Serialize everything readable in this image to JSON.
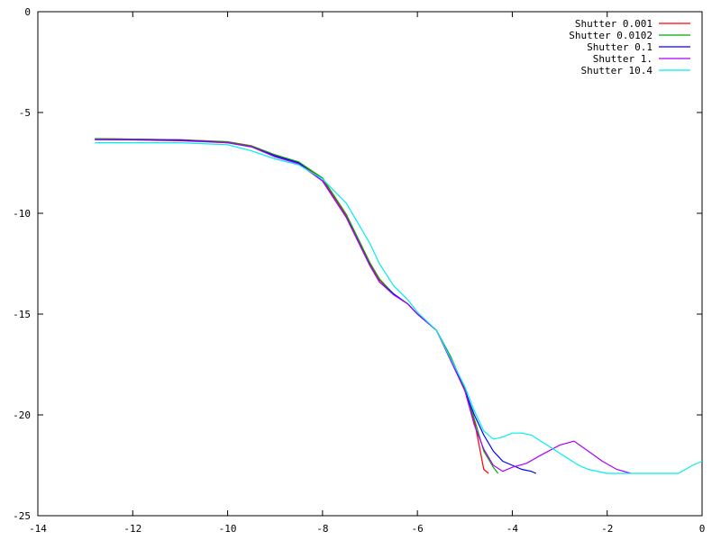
{
  "chart_data": {
    "type": "line",
    "title": "",
    "xlabel": "",
    "ylabel": "",
    "xlim": [
      -14,
      0
    ],
    "ylim": [
      -25,
      0
    ],
    "grid": false,
    "legend_position": "top-right",
    "x_ticks": [
      {
        "value": -14,
        "label": "-14"
      },
      {
        "value": -12,
        "label": "-12"
      },
      {
        "value": -10,
        "label": "-10"
      },
      {
        "value": -8,
        "label": "-8"
      },
      {
        "value": -6,
        "label": "-6"
      },
      {
        "value": -4,
        "label": "-4"
      },
      {
        "value": -2,
        "label": "-2"
      },
      {
        "value": 0,
        "label": "0"
      }
    ],
    "y_ticks": [
      {
        "value": 0,
        "label": "0"
      },
      {
        "value": -5,
        "label": "-5"
      },
      {
        "value": -10,
        "label": "-10"
      },
      {
        "value": -15,
        "label": "-15"
      },
      {
        "value": -20,
        "label": "-20"
      },
      {
        "value": -25,
        "label": "-25"
      }
    ],
    "series": [
      {
        "name": "Shutter 0.001",
        "color": "#ff0000",
        "x": [
          -12.8,
          -12.0,
          -11.0,
          -10.0,
          -9.5,
          -9.0,
          -8.5,
          -8.0,
          -7.5,
          -7.0,
          -6.8,
          -6.5,
          -6.2,
          -6.0,
          -5.6,
          -5.3,
          -5.0,
          -4.8,
          -4.7,
          -4.6,
          -4.5
        ],
        "y": [
          -6.3,
          -6.32,
          -6.35,
          -6.45,
          -6.65,
          -7.1,
          -7.5,
          -8.3,
          -10.1,
          -12.5,
          -13.3,
          -14.0,
          -14.5,
          -15.0,
          -15.8,
          -17.2,
          -18.7,
          -20.3,
          -21.5,
          -22.7,
          -22.9
        ]
      },
      {
        "name": "Shutter 0.0102",
        "color": "#00aa00",
        "x": [
          -12.8,
          -12.0,
          -11.0,
          -10.0,
          -9.5,
          -9.0,
          -8.5,
          -8.0,
          -7.5,
          -7.0,
          -6.8,
          -6.5,
          -6.2,
          -6.0,
          -5.6,
          -5.3,
          -5.0,
          -4.8,
          -4.6,
          -4.4,
          -4.3
        ],
        "y": [
          -6.3,
          -6.32,
          -6.36,
          -6.46,
          -6.66,
          -7.1,
          -7.45,
          -8.25,
          -10.05,
          -12.45,
          -13.25,
          -14.0,
          -14.5,
          -15.0,
          -15.8,
          -17.1,
          -18.7,
          -20.2,
          -21.8,
          -22.6,
          -22.9
        ]
      },
      {
        "name": "Shutter 0.1",
        "color": "#0000ff",
        "x": [
          -12.8,
          -12.0,
          -11.0,
          -10.0,
          -9.5,
          -9.0,
          -8.5,
          -8.0,
          -7.5,
          -7.0,
          -6.8,
          -6.5,
          -6.2,
          -6.0,
          -5.6,
          -5.3,
          -5.0,
          -4.8,
          -4.6,
          -4.4,
          -4.2,
          -4.0,
          -3.8,
          -3.6,
          -3.5
        ],
        "y": [
          -6.35,
          -6.35,
          -6.37,
          -6.5,
          -6.7,
          -7.15,
          -7.5,
          -8.4,
          -10.2,
          -12.6,
          -13.4,
          -14.0,
          -14.5,
          -15.0,
          -15.8,
          -17.2,
          -18.8,
          -20.0,
          -21.0,
          -21.8,
          -22.3,
          -22.5,
          -22.7,
          -22.8,
          -22.9
        ]
      },
      {
        "name": "Shutter 1.",
        "color": "#aa00ff",
        "x": [
          -12.8,
          -12.0,
          -11.0,
          -10.0,
          -9.5,
          -9.0,
          -8.5,
          -8.0,
          -7.5,
          -7.0,
          -6.8,
          -6.5,
          -6.2,
          -6.0,
          -5.6,
          -5.3,
          -5.0,
          -4.8,
          -4.6,
          -4.4,
          -4.2,
          -4.0,
          -3.7,
          -3.4,
          -3.0,
          -2.7,
          -2.4,
          -2.1,
          -1.8,
          -1.5
        ],
        "y": [
          -6.35,
          -6.36,
          -6.4,
          -6.5,
          -6.7,
          -7.2,
          -7.55,
          -8.4,
          -10.2,
          -12.6,
          -13.4,
          -14.05,
          -14.5,
          -15.0,
          -15.8,
          -17.3,
          -18.8,
          -20.5,
          -21.7,
          -22.5,
          -22.8,
          -22.6,
          -22.4,
          -22.0,
          -21.5,
          -21.3,
          -21.8,
          -22.3,
          -22.7,
          -22.9
        ]
      },
      {
        "name": "Shutter 10.4",
        "color": "#00eeee",
        "x": [
          -12.8,
          -12.0,
          -11.0,
          -10.0,
          -9.5,
          -9.0,
          -8.5,
          -8.0,
          -7.5,
          -7.0,
          -6.8,
          -6.5,
          -6.2,
          -6.0,
          -5.6,
          -5.3,
          -5.0,
          -4.8,
          -4.6,
          -4.4,
          -4.2,
          -4.0,
          -3.8,
          -3.6,
          -3.4,
          -3.2,
          -3.0,
          -2.8,
          -2.6,
          -2.4,
          -2.0,
          -1.0,
          -0.5,
          -0.2,
          0.0
        ],
        "y": [
          -6.5,
          -6.5,
          -6.5,
          -6.6,
          -6.9,
          -7.3,
          -7.6,
          -8.3,
          -9.5,
          -11.5,
          -12.5,
          -13.6,
          -14.3,
          -14.9,
          -15.8,
          -17.2,
          -18.6,
          -19.8,
          -20.8,
          -21.2,
          -21.1,
          -20.9,
          -20.9,
          -21.0,
          -21.3,
          -21.6,
          -21.9,
          -22.2,
          -22.5,
          -22.7,
          -22.9,
          -22.9,
          -22.9,
          -22.5,
          -22.3
        ]
      }
    ]
  }
}
